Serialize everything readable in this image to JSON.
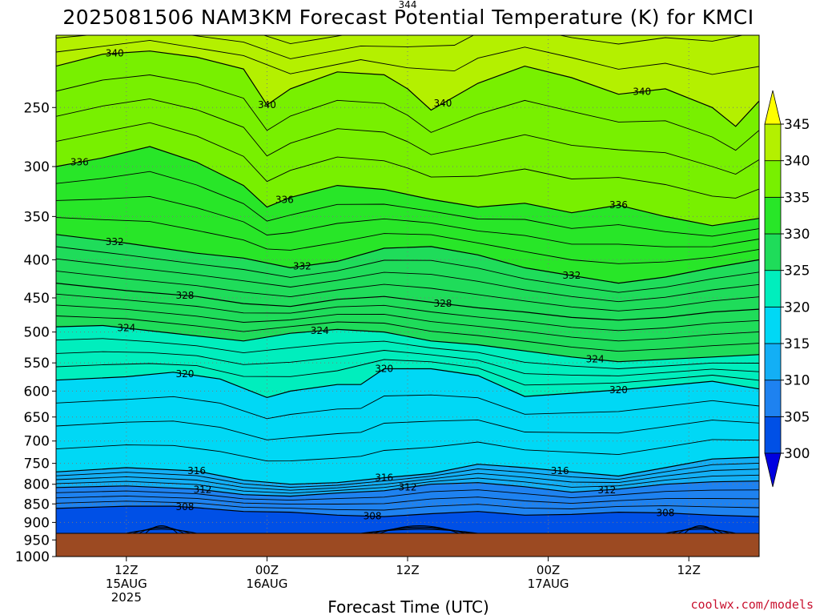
{
  "chart_data": {
    "type": "contour",
    "title": "2025081506 NAM3KM Forecast Potential Temperature (K) for KMCI",
    "xlabel": "Forecast Time (UTC)",
    "ylabel": "",
    "y_ticks": [
      250,
      300,
      350,
      400,
      450,
      500,
      550,
      600,
      650,
      700,
      750,
      800,
      850,
      900,
      950,
      1000
    ],
    "y_scale": "log-pressure, inverted",
    "ylim": [
      1000,
      200
    ],
    "x_ticks": [
      {
        "hour": 6,
        "line1": "12Z",
        "line2": "15AUG",
        "line3": "2025"
      },
      {
        "hour": 18,
        "line1": "00Z",
        "line2": "16AUG",
        "line3": ""
      },
      {
        "hour": 30,
        "line1": "12Z",
        "line2": "",
        "line3": ""
      },
      {
        "hour": 42,
        "line1": "00Z",
        "line2": "17AUG",
        "line3": ""
      },
      {
        "hour": 54,
        "line1": "12Z",
        "line2": "",
        "line3": ""
      }
    ],
    "xlim": [
      0,
      60
    ],
    "grid": true,
    "colorbar": {
      "levels": [
        300,
        305,
        310,
        315,
        320,
        325,
        330,
        335,
        340,
        345
      ],
      "labels": [
        "300",
        "305",
        "310",
        "315",
        "320",
        "325",
        "330",
        "335",
        "340",
        "345"
      ],
      "colors": [
        "#0000e0",
        "#0050e6",
        "#1e82f0",
        "#13aff5",
        "#00d8f5",
        "#00eebd",
        "#1fdc5a",
        "#28e628",
        "#78f000",
        "#b4f000",
        "#ffff00"
      ]
    },
    "contours": [
      {
        "value": 344,
        "label": "344",
        "p": [
          [
            0,
            185
          ],
          [
            8,
            184
          ],
          [
            16,
            188
          ],
          [
            20,
            196
          ],
          [
            26,
            190
          ],
          [
            30,
            182
          ],
          [
            34,
            176
          ],
          [
            36,
            170
          ],
          [
            40,
            174
          ],
          [
            44,
            178
          ],
          [
            48,
            176
          ],
          [
            52,
            172
          ],
          [
            56,
            166
          ],
          [
            60,
            160
          ]
        ],
        "labels_at": [
          30,
          46
        ]
      },
      {
        "value": 340,
        "label": "340",
        "p": [
          [
            0,
            220
          ],
          [
            4,
            212
          ],
          [
            8,
            210
          ],
          [
            12,
            214
          ],
          [
            16,
            222
          ],
          [
            18,
            248
          ],
          [
            20,
            236
          ],
          [
            24,
            224
          ],
          [
            28,
            226
          ],
          [
            30,
            236
          ],
          [
            32,
            252
          ],
          [
            36,
            232
          ],
          [
            40,
            220
          ],
          [
            44,
            228
          ],
          [
            48,
            240
          ],
          [
            52,
            236
          ],
          [
            56,
            250
          ],
          [
            58,
            265
          ],
          [
            60,
            245
          ]
        ],
        "labels_at": [
          5,
          18,
          33,
          50
        ]
      },
      {
        "value": 336,
        "label": "336",
        "p": [
          [
            0,
            300
          ],
          [
            4,
            292
          ],
          [
            8,
            282
          ],
          [
            12,
            296
          ],
          [
            16,
            318
          ],
          [
            18,
            340
          ],
          [
            20,
            330
          ],
          [
            24,
            318
          ],
          [
            28,
            322
          ],
          [
            32,
            332
          ],
          [
            36,
            340
          ],
          [
            40,
            336
          ],
          [
            44,
            346
          ],
          [
            48,
            338
          ],
          [
            52,
            350
          ],
          [
            56,
            360
          ],
          [
            60,
            352
          ]
        ],
        "labels_at": [
          2,
          19.5,
          48
        ]
      },
      {
        "value": 332,
        "label": "332",
        "p": [
          [
            0,
            370
          ],
          [
            6,
            380
          ],
          [
            12,
            392
          ],
          [
            16,
            398
          ],
          [
            20,
            410
          ],
          [
            24,
            402
          ],
          [
            28,
            386
          ],
          [
            32,
            384
          ],
          [
            36,
            394
          ],
          [
            40,
            410
          ],
          [
            44,
            420
          ],
          [
            48,
            430
          ],
          [
            52,
            422
          ],
          [
            56,
            410
          ],
          [
            60,
            400
          ]
        ],
        "labels_at": [
          5,
          21,
          44
        ]
      },
      {
        "value": 328,
        "label": "328",
        "p": [
          [
            0,
            430
          ],
          [
            6,
            440
          ],
          [
            12,
            448
          ],
          [
            16,
            458
          ],
          [
            20,
            462
          ],
          [
            24,
            452
          ],
          [
            28,
            448
          ],
          [
            32,
            456
          ],
          [
            36,
            464
          ],
          [
            40,
            470
          ],
          [
            44,
            478
          ],
          [
            48,
            482
          ],
          [
            52,
            478
          ],
          [
            56,
            470
          ],
          [
            60,
            466
          ]
        ],
        "labels_at": [
          11,
          33
        ]
      },
      {
        "value": 324,
        "label": "324",
        "p": [
          [
            0,
            492
          ],
          [
            4,
            490
          ],
          [
            8,
            498
          ],
          [
            12,
            506
          ],
          [
            16,
            514
          ],
          [
            20,
            502
          ],
          [
            24,
            496
          ],
          [
            28,
            500
          ],
          [
            32,
            514
          ],
          [
            36,
            520
          ],
          [
            40,
            530
          ],
          [
            44,
            540
          ],
          [
            48,
            548
          ],
          [
            52,
            544
          ],
          [
            56,
            540
          ],
          [
            60,
            536
          ]
        ],
        "labels_at": [
          6,
          22.5,
          46
        ]
      },
      {
        "value": 320,
        "label": "320",
        "p": [
          [
            0,
            580
          ],
          [
            6,
            574
          ],
          [
            10,
            566
          ],
          [
            14,
            578
          ],
          [
            18,
            612
          ],
          [
            20,
            600
          ],
          [
            24,
            588
          ],
          [
            26,
            588
          ],
          [
            28,
            560
          ],
          [
            32,
            560
          ],
          [
            36,
            572
          ],
          [
            40,
            610
          ],
          [
            44,
            604
          ],
          [
            48,
            598
          ],
          [
            52,
            590
          ],
          [
            56,
            582
          ],
          [
            60,
            596
          ]
        ],
        "labels_at": [
          11,
          28,
          48
        ]
      },
      {
        "value": 316,
        "label": "316",
        "p": [
          [
            0,
            770
          ],
          [
            6,
            760
          ],
          [
            12,
            768
          ],
          [
            16,
            790
          ],
          [
            20,
            800
          ],
          [
            24,
            796
          ],
          [
            28,
            784
          ],
          [
            32,
            774
          ],
          [
            36,
            752
          ],
          [
            40,
            760
          ],
          [
            44,
            770
          ],
          [
            48,
            780
          ],
          [
            52,
            760
          ],
          [
            56,
            740
          ],
          [
            60,
            736
          ]
        ],
        "labels_at": [
          12,
          28,
          43
        ]
      },
      {
        "value": 312,
        "label": "312",
        "p": [
          [
            0,
            808
          ],
          [
            6,
            804
          ],
          [
            12,
            812
          ],
          [
            16,
            826
          ],
          [
            20,
            830
          ],
          [
            24,
            822
          ],
          [
            28,
            816
          ],
          [
            32,
            800
          ],
          [
            36,
            796
          ],
          [
            40,
            806
          ],
          [
            44,
            820
          ],
          [
            48,
            812
          ],
          [
            52,
            800
          ],
          [
            56,
            794
          ],
          [
            60,
            792
          ]
        ],
        "labels_at": [
          12.5,
          30,
          47
        ]
      },
      {
        "value": 308,
        "label": "308",
        "p": [
          [
            0,
            862
          ],
          [
            6,
            856
          ],
          [
            10,
            856
          ],
          [
            12,
            860
          ],
          [
            16,
            870
          ],
          [
            20,
            872
          ],
          [
            24,
            880
          ],
          [
            28,
            884
          ],
          [
            32,
            876
          ],
          [
            36,
            870
          ],
          [
            40,
            880
          ],
          [
            44,
            878
          ],
          [
            48,
            872
          ],
          [
            52,
            874
          ],
          [
            56,
            880
          ],
          [
            60,
            884
          ]
        ],
        "labels_at": [
          11,
          27,
          52
        ]
      }
    ]
  },
  "credit": "coolwx.com/models"
}
